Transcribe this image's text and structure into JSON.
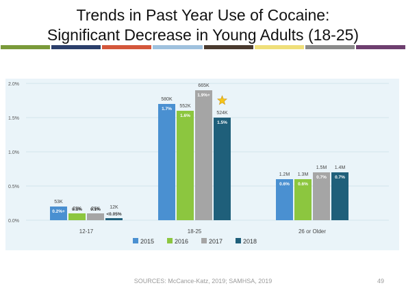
{
  "slide": {
    "title_line1": "Trends in Past Year Use of Cocaine:",
    "title_line2": "Significant Decrease in Young Adults (18-25)",
    "sources": "SOURCES: McCance-Katz, 2019; SAMHSA, 2019",
    "page_number": "49",
    "stripe_colors": [
      "#7a9a3a",
      "#2b3f6b",
      "#d4573b",
      "#9fc1de",
      "#4a3a2e",
      "#efdf7a",
      "#8a8a8a",
      "#6e3f6f"
    ]
  },
  "chart_data": {
    "type": "bar",
    "categories": [
      "12-17",
      "18-25",
      "26 or Older"
    ],
    "series": [
      {
        "name": "2015",
        "color": "#4a90d1",
        "values": [
          0.2,
          1.7,
          0.6
        ],
        "count_labels": [
          "53K",
          "580K",
          "1.2M"
        ],
        "pct_labels": [
          "0.2%+",
          "1.7%",
          "0.6%"
        ]
      },
      {
        "name": "2016",
        "color": "#8cc63f",
        "values": [
          0.1,
          1.6,
          0.6
        ],
        "count_labels": [
          "28K",
          "552K",
          "1.3M"
        ],
        "pct_labels": [
          "0.1%",
          "1.6%",
          "0.6%"
        ]
      },
      {
        "name": "2017",
        "color": "#a5a5a5",
        "values": [
          0.1,
          1.9,
          0.7
        ],
        "count_labels": [
          "26K",
          "665K",
          "1.5M"
        ],
        "pct_labels": [
          "0.1%",
          "1.9%+",
          "0.7%"
        ]
      },
      {
        "name": "2018",
        "color": "#1f5f7a",
        "values": [
          0.03,
          1.5,
          0.7
        ],
        "count_labels": [
          "12K",
          "524K",
          "1.4M"
        ],
        "pct_labels": [
          "<0.05%",
          "1.5%",
          "0.7%"
        ]
      }
    ],
    "yticks": [
      "0.0%",
      "0.5%",
      "1.0%",
      "1.5%",
      "2.0%"
    ],
    "ylim": [
      0,
      2.0
    ],
    "grid": true,
    "legend_position": "bottom",
    "annotation": "star-icon above 2018 bar in 18-25 (significant decrease)"
  }
}
